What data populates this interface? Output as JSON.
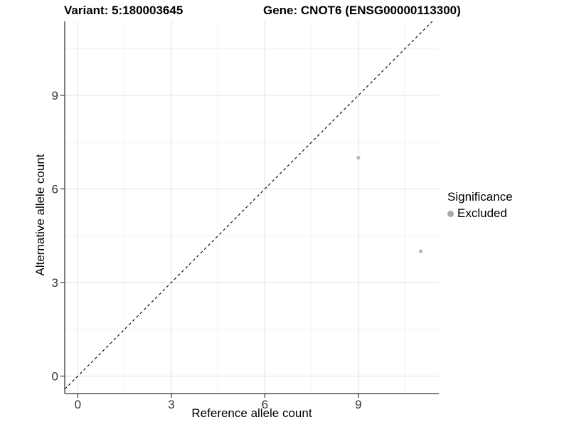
{
  "chart_data": {
    "type": "scatter",
    "title_left": "Variant: 5:180003645",
    "title_right": "Gene: CNOT6 (ENSG00000113300)",
    "xlabel": "Reference allele count",
    "ylabel": "Alternative allele count",
    "x_ticks": [
      0,
      3,
      6,
      9
    ],
    "y_ticks": [
      0,
      3,
      6,
      9
    ],
    "x_minor_ticks": [
      1.5,
      4.5,
      7.5,
      10.5
    ],
    "y_minor_ticks": [
      1.5,
      4.5,
      7.5,
      10.5
    ],
    "xlim": [
      -0.42,
      11.58
    ],
    "ylim": [
      -0.56,
      11.37
    ],
    "grid": true,
    "points": [
      {
        "x": 9,
        "y": 7,
        "significance": "Excluded"
      },
      {
        "x": 11,
        "y": 4,
        "significance": "Excluded"
      }
    ],
    "reference_line": {
      "type": "identity",
      "slope": 1,
      "intercept": 0,
      "style": "dashed",
      "color": "#000000"
    },
    "legend": {
      "title": "Significance",
      "position": "right",
      "items": [
        {
          "label": "Excluded",
          "color": "#a9a9a9",
          "marker": "circle"
        }
      ]
    },
    "colors": {
      "background": "#ffffff",
      "grid_major": "#e3e3e3",
      "grid_minor": "#f0f0f0",
      "axis_line": "#555555",
      "tick": "#333333",
      "tick_label": "#333333",
      "point": "#b5b5b5",
      "text": "#000000"
    }
  }
}
